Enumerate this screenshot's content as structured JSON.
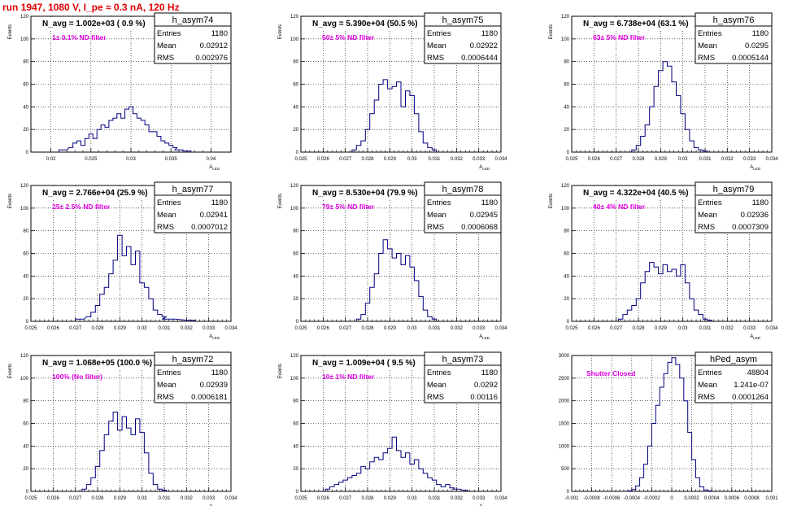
{
  "title": "run 1947,  1080 V, I_pe ≈ 0.3 nA, 120 Hz",
  "stats_labels": {
    "entries": "Entries",
    "mean": "Mean",
    "rms": "RMS"
  },
  "colors": {
    "histogram": "#000080",
    "title": "#e00000",
    "annotation": "#e000e0",
    "grid": "#000000",
    "frame": "#000000"
  },
  "chart_data": [
    {
      "type": "histogram",
      "name": "h_asym74",
      "header": "N_avg = 1.002e+03 ( 0.9 %)",
      "note": "1± 0.1% ND filter",
      "ylabel": "Events",
      "xlabel": "A_LED",
      "stats": {
        "entries": "1180",
        "mean": "0.02912",
        "rms": "0.002976"
      },
      "xlim": [
        0.0175,
        0.0425
      ],
      "ylim": [
        0,
        120
      ],
      "xticks": [
        "0.02",
        "0.025",
        "0.03",
        "0.035",
        "0.04"
      ],
      "xtick_values": [
        0.02,
        0.025,
        0.03,
        0.035,
        0.04
      ],
      "yticks": [
        0,
        20,
        40,
        60,
        80,
        100,
        120
      ],
      "grid": true,
      "x": [
        0.0215,
        0.0225,
        0.023,
        0.0235,
        0.024,
        0.0245,
        0.025,
        0.0255,
        0.026,
        0.0265,
        0.027,
        0.0275,
        0.028,
        0.0285,
        0.029,
        0.0295,
        0.03,
        0.0305,
        0.031,
        0.0315,
        0.032,
        0.0325,
        0.033,
        0.0335,
        0.034,
        0.0345,
        0.035,
        0.0355,
        0.036,
        0.037
      ],
      "values": [
        2,
        4,
        8,
        10,
        6,
        12,
        16,
        12,
        20,
        24,
        22,
        28,
        30,
        34,
        30,
        38,
        40,
        34,
        30,
        28,
        24,
        18,
        18,
        14,
        10,
        8,
        6,
        4,
        2,
        1
      ]
    },
    {
      "type": "histogram",
      "name": "h_asym75",
      "header": "N_avg = 5.390e+04 (50.5 %)",
      "note": "50± 5% ND filter",
      "ylabel": "Events",
      "xlabel": "A_LED",
      "stats": {
        "entries": "1180",
        "mean": "0.02922",
        "rms": "0.0006444"
      },
      "xlim": [
        0.025,
        0.034
      ],
      "ylim": [
        0,
        120
      ],
      "xticks": [
        "0.025",
        "0.026",
        "0.027",
        "0.028",
        "0.029",
        "0.03",
        "0.031",
        "0.032",
        "0.033",
        "0.034"
      ],
      "xtick_values": [
        0.025,
        0.026,
        0.027,
        0.028,
        0.029,
        0.03,
        0.031,
        0.032,
        0.033,
        0.034
      ],
      "yticks": [
        0,
        20,
        40,
        60,
        80,
        100,
        120
      ],
      "grid": true,
      "x": [
        0.0274,
        0.0276,
        0.0278,
        0.028,
        0.0282,
        0.0284,
        0.0286,
        0.0288,
        0.029,
        0.0292,
        0.0294,
        0.0296,
        0.0298,
        0.03,
        0.0302,
        0.0304,
        0.0306,
        0.0308,
        0.031
      ],
      "values": [
        2,
        6,
        10,
        20,
        34,
        46,
        60,
        64,
        56,
        58,
        62,
        40,
        54,
        50,
        34,
        18,
        8,
        4,
        2
      ]
    },
    {
      "type": "histogram",
      "name": "h_asym76",
      "header": "N_avg = 6.738e+04 (63.1 %)",
      "note": "63± 5% ND filter",
      "ylabel": "Events",
      "xlabel": "A_LED",
      "stats": {
        "entries": "1180",
        "mean": "0.0295",
        "rms": "0.0005144"
      },
      "xlim": [
        0.025,
        0.034
      ],
      "ylim": [
        0,
        120
      ],
      "xticks": [
        "0.025",
        "0.026",
        "0.027",
        "0.028",
        "0.029",
        "0.03",
        "0.031",
        "0.032",
        "0.033",
        "0.034"
      ],
      "xtick_values": [
        0.025,
        0.026,
        0.027,
        0.028,
        0.029,
        0.03,
        0.031,
        0.032,
        0.033,
        0.034
      ],
      "yticks": [
        0,
        20,
        40,
        60,
        80,
        100,
        120
      ],
      "grid": true,
      "x": [
        0.0278,
        0.028,
        0.0282,
        0.0284,
        0.0286,
        0.0288,
        0.029,
        0.0292,
        0.0294,
        0.0296,
        0.0298,
        0.03,
        0.0302,
        0.0304,
        0.0306,
        0.0308,
        0.031
      ],
      "values": [
        2,
        6,
        14,
        24,
        40,
        58,
        72,
        80,
        76,
        62,
        50,
        34,
        20,
        10,
        4,
        2,
        1
      ]
    },
    {
      "type": "histogram",
      "name": "h_asym77",
      "header": "N_avg = 2.766e+04 (25.9 %)",
      "note": "25± 2.5% ND filter",
      "ylabel": "Events",
      "xlabel": "A_LED",
      "stats": {
        "entries": "1180",
        "mean": "0.02941",
        "rms": "0.0007012"
      },
      "xlim": [
        0.025,
        0.034
      ],
      "ylim": [
        0,
        120
      ],
      "xticks": [
        "0.025",
        "0.026",
        "0.027",
        "0.028",
        "0.029",
        "0.03",
        "0.031",
        "0.032",
        "0.033",
        "0.034"
      ],
      "xtick_values": [
        0.025,
        0.026,
        0.027,
        0.028,
        0.029,
        0.03,
        0.031,
        0.032,
        0.033,
        0.034
      ],
      "yticks": [
        0,
        20,
        40,
        60,
        80,
        100,
        120
      ],
      "grid": true,
      "x": [
        0.0272,
        0.0276,
        0.0278,
        0.028,
        0.0282,
        0.0284,
        0.0286,
        0.0288,
        0.029,
        0.0292,
        0.0294,
        0.0296,
        0.0298,
        0.03,
        0.0302,
        0.0304,
        0.0306,
        0.0308,
        0.031,
        0.0312,
        0.0322
      ],
      "values": [
        2,
        4,
        8,
        14,
        24,
        30,
        42,
        54,
        76,
        58,
        66,
        50,
        62,
        34,
        30,
        20,
        10,
        6,
        4,
        2,
        1
      ]
    },
    {
      "type": "histogram",
      "name": "h_asym78",
      "header": "N_avg = 8.530e+04 (79.9 %)",
      "note": "79± 5% ND filter",
      "ylabel": "Events",
      "xlabel": "A_LED",
      "stats": {
        "entries": "1180",
        "mean": "0.02945",
        "rms": "0.0006068"
      },
      "xlim": [
        0.025,
        0.034
      ],
      "ylim": [
        0,
        120
      ],
      "xticks": [
        "0.025",
        "0.026",
        "0.027",
        "0.028",
        "0.029",
        "0.03",
        "0.031",
        "0.032",
        "0.033",
        "0.034"
      ],
      "xtick_values": [
        0.025,
        0.026,
        0.027,
        0.028,
        0.029,
        0.03,
        0.031,
        0.032,
        0.033,
        0.034
      ],
      "yticks": [
        0,
        20,
        40,
        60,
        80,
        100,
        120
      ],
      "grid": true,
      "x": [
        0.0276,
        0.0278,
        0.028,
        0.0282,
        0.0284,
        0.0286,
        0.0288,
        0.029,
        0.0292,
        0.0294,
        0.0296,
        0.0298,
        0.03,
        0.0302,
        0.0304,
        0.0306,
        0.0308,
        0.031
      ],
      "values": [
        2,
        6,
        16,
        30,
        42,
        60,
        72,
        64,
        56,
        60,
        50,
        58,
        48,
        36,
        22,
        10,
        4,
        2
      ]
    },
    {
      "type": "histogram",
      "name": "h_asym79",
      "header": "N_avg = 4.322e+04 (40.5 %)",
      "note": "40± 4% ND filter",
      "ylabel": "Events",
      "xlabel": "A_LED",
      "stats": {
        "entries": "1180",
        "mean": "0.02936",
        "rms": "0.0007309"
      },
      "xlim": [
        0.025,
        0.034
      ],
      "ylim": [
        0,
        120
      ],
      "xticks": [
        "0.025",
        "0.026",
        "0.027",
        "0.028",
        "0.029",
        "0.03",
        "0.031",
        "0.032",
        "0.033",
        "0.034"
      ],
      "xtick_values": [
        0.025,
        0.026,
        0.027,
        0.028,
        0.029,
        0.03,
        0.031,
        0.032,
        0.033,
        0.034
      ],
      "yticks": [
        0,
        20,
        40,
        60,
        80,
        100,
        120
      ],
      "grid": true,
      "x": [
        0.0272,
        0.0274,
        0.0276,
        0.0278,
        0.028,
        0.0282,
        0.0284,
        0.0286,
        0.0288,
        0.029,
        0.0292,
        0.0294,
        0.0296,
        0.0298,
        0.03,
        0.0302,
        0.0304,
        0.0306,
        0.0308,
        0.031,
        0.0312
      ],
      "values": [
        2,
        6,
        10,
        14,
        20,
        34,
        44,
        52,
        48,
        42,
        50,
        44,
        46,
        40,
        50,
        34,
        20,
        10,
        6,
        2,
        1
      ]
    },
    {
      "type": "histogram",
      "name": "h_asym72",
      "header": "N_avg = 1.068e+05 (100.0 %)",
      "note": "100% (No filter)",
      "ylabel": "Events",
      "xlabel": "A_LED",
      "stats": {
        "entries": "1180",
        "mean": "0.02939",
        "rms": "0.0006181"
      },
      "xlim": [
        0.025,
        0.034
      ],
      "ylim": [
        0,
        120
      ],
      "xticks": [
        "0.025",
        "0.026",
        "0.027",
        "0.028",
        "0.029",
        "0.03",
        "0.031",
        "0.032",
        "0.033",
        "0.034"
      ],
      "xtick_values": [
        0.025,
        0.026,
        0.027,
        0.028,
        0.029,
        0.03,
        0.031,
        0.032,
        0.033,
        0.034
      ],
      "yticks": [
        0,
        20,
        40,
        60,
        80,
        100,
        120
      ],
      "grid": true,
      "x": [
        0.0274,
        0.0276,
        0.0278,
        0.028,
        0.0282,
        0.0284,
        0.0286,
        0.0288,
        0.029,
        0.0292,
        0.0294,
        0.0296,
        0.0298,
        0.03,
        0.0302,
        0.0304,
        0.0306,
        0.0308,
        0.031
      ],
      "values": [
        2,
        6,
        12,
        22,
        36,
        50,
        62,
        70,
        54,
        66,
        56,
        50,
        64,
        52,
        34,
        16,
        6,
        2,
        1
      ]
    },
    {
      "type": "histogram",
      "name": "h_asym73",
      "header": "N_avg = 1.009e+04 ( 9.5 %)",
      "note": "10± 1% ND filter",
      "ylabel": "Events",
      "xlabel": "A_LED",
      "stats": {
        "entries": "1180",
        "mean": "0.0292",
        "rms": "0.00116"
      },
      "xlim": [
        0.025,
        0.034
      ],
      "ylim": [
        0,
        120
      ],
      "xticks": [
        "0.025",
        "0.026",
        "0.027",
        "0.028",
        "0.029",
        "0.03",
        "0.031",
        "0.032",
        "0.033",
        "0.034"
      ],
      "xtick_values": [
        0.025,
        0.026,
        0.027,
        0.028,
        0.029,
        0.03,
        0.031,
        0.032,
        0.033,
        0.034
      ],
      "yticks": [
        0,
        20,
        40,
        60,
        80,
        100,
        120
      ],
      "grid": true,
      "x": [
        0.0262,
        0.0264,
        0.0266,
        0.0268,
        0.027,
        0.0272,
        0.0274,
        0.0276,
        0.0278,
        0.028,
        0.0282,
        0.0284,
        0.0286,
        0.0288,
        0.029,
        0.0292,
        0.0294,
        0.0296,
        0.0298,
        0.03,
        0.0302,
        0.0304,
        0.0306,
        0.0308,
        0.031,
        0.0312,
        0.0314,
        0.0316,
        0.0318,
        0.032,
        0.0324
      ],
      "values": [
        2,
        4,
        6,
        8,
        10,
        12,
        14,
        16,
        22,
        20,
        26,
        30,
        28,
        34,
        38,
        48,
        36,
        30,
        34,
        24,
        28,
        20,
        16,
        12,
        10,
        6,
        4,
        6,
        3,
        2,
        1
      ]
    },
    {
      "type": "histogram",
      "name": "hPed_asym",
      "header": "",
      "note": "Shutter Closed",
      "ylabel": "",
      "xlabel": "",
      "stats": {
        "entries": "48804",
        "mean": "1.241e-07",
        "rms": "0.0001264"
      },
      "xlim": [
        -0.001,
        0.001
      ],
      "ylim": [
        0,
        3000
      ],
      "xticks": [
        "-0.001",
        "-0.0008",
        "-0.0006",
        "-0.0004",
        "-0.0002",
        "0",
        "0.0002",
        "0.0004",
        "0.0006",
        "0.0008",
        "0.001"
      ],
      "xtick_values": [
        -0.001,
        -0.0008,
        -0.0006,
        -0.0004,
        -0.0002,
        0,
        0.0002,
        0.0004,
        0.0006,
        0.0008,
        0.001
      ],
      "yticks": [
        0,
        500,
        1000,
        1500,
        2000,
        2500,
        3000
      ],
      "grid": true,
      "x": [
        -0.00042,
        -0.00038,
        -0.00034,
        -0.0003,
        -0.00026,
        -0.00022,
        -0.00018,
        -0.00014,
        -0.0001,
        -6e-05,
        -2e-05,
        2e-05,
        6e-05,
        0.0001,
        0.00014,
        0.00018,
        0.00022,
        0.00026,
        0.0003,
        0.00034,
        0.00038
      ],
      "values": [
        10,
        40,
        120,
        300,
        600,
        1000,
        1500,
        1900,
        2300,
        2600,
        2850,
        2950,
        2800,
        2500,
        2000,
        1300,
        700,
        300,
        100,
        30,
        10
      ]
    }
  ]
}
